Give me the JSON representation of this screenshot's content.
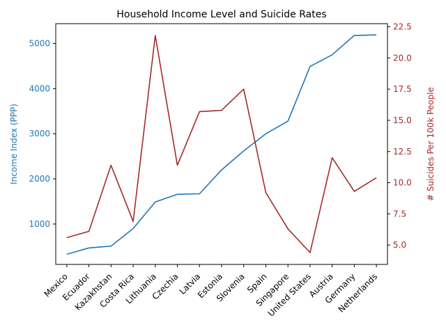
{
  "chart_data": {
    "type": "line",
    "title": "Household Income Level and Suicide Rates",
    "categories": [
      "Mexico",
      "Ecuador",
      "Kazakhstan",
      "Costa Rica",
      "Lithuania",
      "Czechia",
      "Latvia",
      "Estonia",
      "Slovenia",
      "Spain",
      "Singapore",
      "United States",
      "Austria",
      "Germany",
      "Netherlands"
    ],
    "series": [
      {
        "axis": "left",
        "color": "#1f77b4",
        "values": [
          330,
          470,
          510,
          900,
          1490,
          1660,
          1670,
          2200,
          2620,
          3000,
          3280,
          4490,
          4750,
          5180,
          5190
        ]
      },
      {
        "axis": "right",
        "color": "#a52a2a",
        "values": [
          5.6,
          6.1,
          11.4,
          6.9,
          21.8,
          11.4,
          15.7,
          15.8,
          17.5,
          9.2,
          6.3,
          4.4,
          12.0,
          9.3,
          10.4
        ]
      }
    ],
    "ylabel_left": "Income Index (PPP)",
    "ylabel_right": "# Suicides Per 100k People",
    "ylim_left": [
      105,
      5440
    ],
    "ylim_right": [
      3.45,
      22.75
    ],
    "yticks_left": [
      1000,
      2000,
      3000,
      4000,
      5000
    ],
    "yticks_right": [
      5.0,
      7.5,
      10.0,
      12.5,
      15.0,
      17.5,
      20.0,
      22.5
    ],
    "grid": false,
    "legend": "none"
  }
}
